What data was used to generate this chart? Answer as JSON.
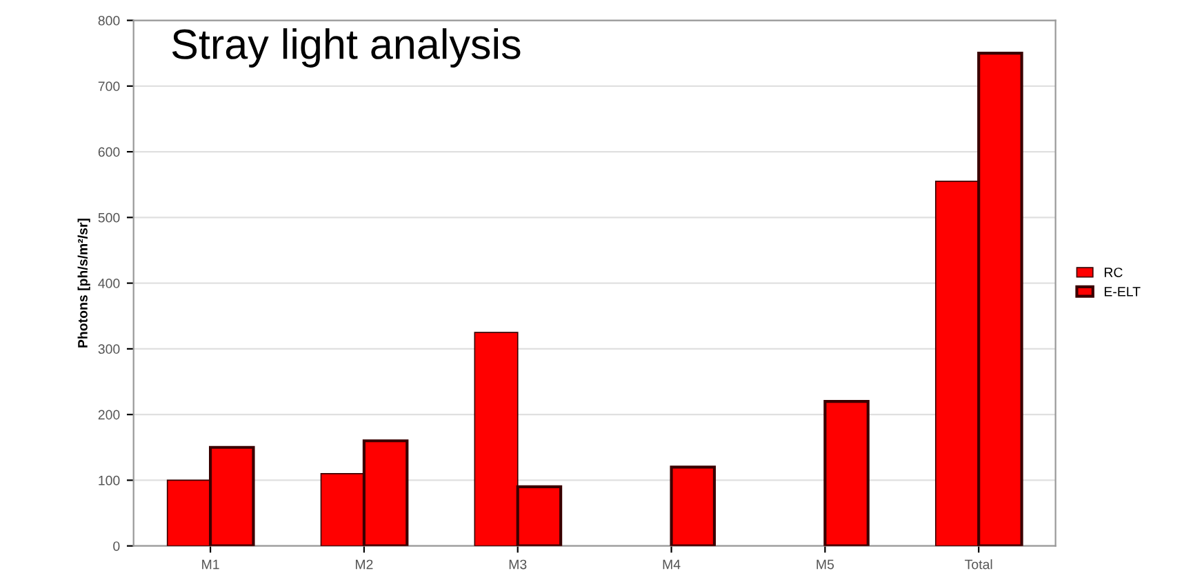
{
  "chart_data": {
    "type": "bar",
    "title": "Stray light analysis",
    "ylabel": "Photons [ph/s/m²/sr]",
    "categories": [
      "M1",
      "M2",
      "M3",
      "M4",
      "M5",
      "Total"
    ],
    "series": [
      {
        "name": "RC",
        "color": "#ff0000",
        "values": [
          100,
          110,
          325,
          null,
          null,
          555
        ]
      },
      {
        "name": "E-ELT",
        "color": "#ff0000",
        "values": [
          150,
          160,
          90,
          120,
          220,
          750
        ]
      }
    ],
    "ylim": [
      0,
      800
    ],
    "yticks": [
      0,
      100,
      200,
      300,
      400,
      500,
      600,
      700,
      800
    ],
    "grid": "y",
    "legend": "right"
  }
}
